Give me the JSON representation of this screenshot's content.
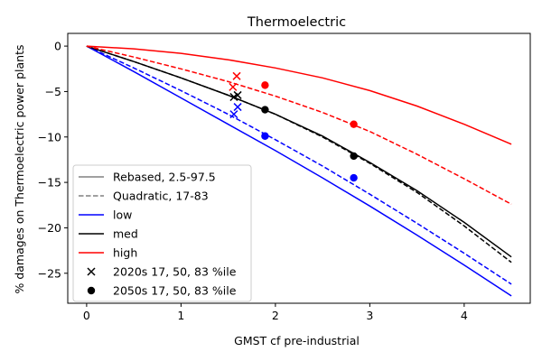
{
  "chart_data": {
    "type": "line",
    "title": "Thermoelectric",
    "xlabel": "GMST cf pre-industrial",
    "ylabel": "% damages on Thermoelectric power plants",
    "xlim": [
      -0.2,
      4.7
    ],
    "ylim": [
      -28.3,
      1.4
    ],
    "xticks": [
      0,
      1,
      2,
      3,
      4
    ],
    "yticks": [
      0,
      -5,
      -10,
      -15,
      -20,
      -25
    ],
    "grid": false,
    "legend_position": "lower-left",
    "legend": [
      {
        "label": "Rebased, 2.5-97.5",
        "kind": "solid-line",
        "color": "#808080"
      },
      {
        "label": "Quadratic, 17-83",
        "kind": "dashed-line",
        "color": "#808080"
      },
      {
        "label": "low",
        "kind": "solid-line",
        "color": "#0000ff"
      },
      {
        "label": "med",
        "kind": "solid-line",
        "color": "#000000"
      },
      {
        "label": "high",
        "kind": "solid-line",
        "color": "#ff0000"
      },
      {
        "label": "2020s 17, 50, 83 %ile",
        "kind": "x-marker",
        "color": "#000000"
      },
      {
        "label": "2050s 17, 50, 83 %ile",
        "kind": "dot-marker",
        "color": "#000000"
      }
    ],
    "series": [
      {
        "key": "low-rebased",
        "style": "solid",
        "color": "#0000ff",
        "x": [
          0,
          0.5,
          1,
          1.5,
          2,
          2.5,
          3,
          3.5,
          4,
          4.5
        ],
        "y": [
          0,
          -2.8,
          -5.7,
          -8.6,
          -11.5,
          -14.5,
          -17.6,
          -20.8,
          -24.1,
          -27.5
        ]
      },
      {
        "key": "low-quadratic",
        "style": "dashed",
        "color": "#0000ff",
        "x": [
          0,
          0.5,
          1,
          1.5,
          2,
          2.5,
          3,
          3.5,
          4,
          4.5
        ],
        "y": [
          0,
          -2.4,
          -4.9,
          -7.5,
          -10.3,
          -13.2,
          -16.3,
          -19.5,
          -22.8,
          -26.2
        ]
      },
      {
        "key": "med-rebased",
        "style": "solid",
        "color": "#000000",
        "x": [
          0,
          0.5,
          1,
          1.5,
          2,
          2.5,
          3,
          3.5,
          4,
          4.5
        ],
        "y": [
          0,
          -1.7,
          -3.5,
          -5.4,
          -7.5,
          -9.9,
          -12.8,
          -15.9,
          -19.4,
          -23.2
        ]
      },
      {
        "key": "med-quadratic",
        "style": "dashed",
        "color": "#000000",
        "x": [
          0,
          0.5,
          1,
          1.5,
          2,
          2.5,
          3,
          3.5,
          4,
          4.5
        ],
        "y": [
          0,
          -1.7,
          -3.5,
          -5.4,
          -7.5,
          -10.0,
          -12.9,
          -16.1,
          -19.8,
          -23.8
        ]
      },
      {
        "key": "high-rebased",
        "style": "solid",
        "color": "#ff0000",
        "x": [
          0,
          0.5,
          1,
          1.5,
          2,
          2.5,
          3,
          3.5,
          4,
          4.5
        ],
        "y": [
          0,
          -0.3,
          -0.8,
          -1.5,
          -2.4,
          -3.5,
          -4.9,
          -6.6,
          -8.6,
          -10.8
        ]
      },
      {
        "key": "high-quadratic",
        "style": "dashed",
        "color": "#ff0000",
        "x": [
          0,
          0.5,
          1,
          1.5,
          2,
          2.5,
          3,
          3.5,
          4,
          4.5
        ],
        "y": [
          0,
          -1.2,
          -2.5,
          -3.9,
          -5.5,
          -7.3,
          -9.4,
          -11.9,
          -14.6,
          -17.4
        ]
      }
    ],
    "markers_2020s": [
      {
        "color": "#ff0000",
        "x": 1.59,
        "y": -3.3
      },
      {
        "color": "#ff0000",
        "x": 1.55,
        "y": -4.5
      },
      {
        "color": "#000000",
        "x": 1.56,
        "y": -5.6
      },
      {
        "color": "#000000",
        "x": 1.6,
        "y": -5.4
      },
      {
        "color": "#0000ff",
        "x": 1.6,
        "y": -6.7
      },
      {
        "color": "#0000ff",
        "x": 1.56,
        "y": -7.5
      }
    ],
    "markers_2050s": [
      {
        "color": "#ff0000",
        "x": 1.89,
        "y": -4.3
      },
      {
        "color": "#ff0000",
        "x": 2.83,
        "y": -8.6
      },
      {
        "color": "#000000",
        "x": 1.89,
        "y": -7.0
      },
      {
        "color": "#000000",
        "x": 2.83,
        "y": -12.1
      },
      {
        "color": "#0000ff",
        "x": 1.89,
        "y": -9.9
      },
      {
        "color": "#0000ff",
        "x": 2.83,
        "y": -14.5
      }
    ]
  }
}
